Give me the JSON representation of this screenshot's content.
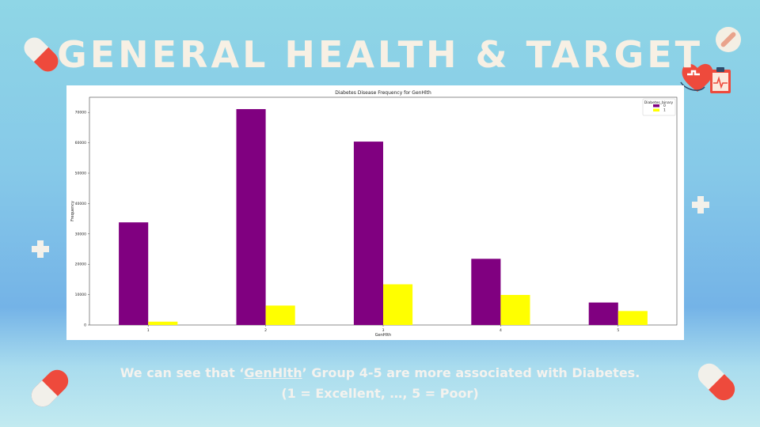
{
  "slide": {
    "title": "GENERAL HEALTH & TARGET",
    "caption": {
      "part1": "We can see that ‘",
      "highlight": "GenHlth",
      "part2": "’ Group 4-5 are more associated with Diabetes.",
      "line2": "(1 = Excellent, …, 5 = Poor)"
    }
  },
  "decorations": [
    "pill-capsule-icon",
    "bandage-icon",
    "heart-medical-icon",
    "clipboard-ecg-icon",
    "plus-icon"
  ],
  "chart_data": {
    "type": "bar",
    "title": "Diabetes Disease Frequency for GenHlth",
    "xlabel": "GenHlth",
    "ylabel": "Frequency",
    "categories": [
      "1",
      "2",
      "3",
      "4",
      "5"
    ],
    "series": [
      {
        "name": "0",
        "color": "#800080",
        "values": [
          33800,
          71100,
          60400,
          21800,
          7400
        ]
      },
      {
        "name": "1",
        "color": "#ffff00",
        "values": [
          1100,
          6400,
          13400,
          9900,
          4600
        ]
      }
    ],
    "ylim": [
      0,
      75000
    ],
    "yticks": [
      0,
      10000,
      20000,
      30000,
      40000,
      50000,
      60000,
      70000
    ],
    "legend": {
      "title": "Diabetes_binary",
      "placement": "top-right"
    },
    "grid": false
  }
}
